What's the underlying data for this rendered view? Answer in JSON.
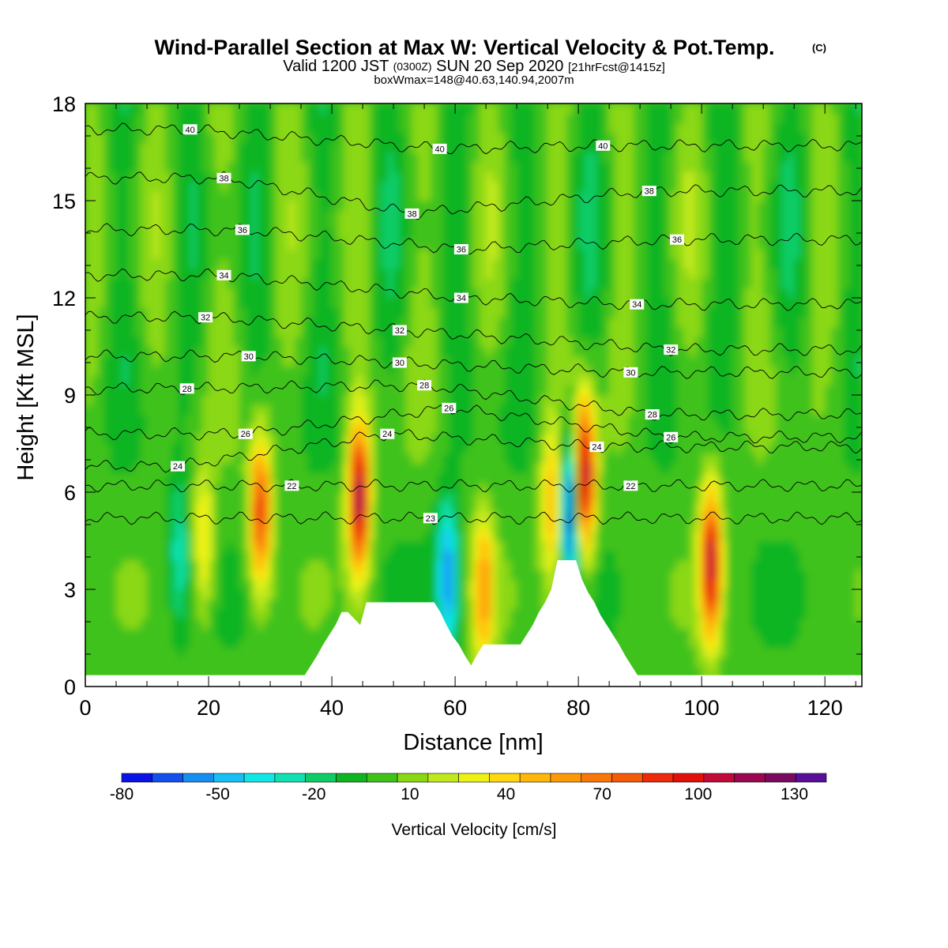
{
  "title": {
    "main": "Wind-Parallel Section at Max W: Vertical Velocity & Pot.Temp.",
    "mark": "(C)",
    "valid_prefix": "Valid 1200 JST",
    "valid_utc": "(0300Z)",
    "valid_date": "SUN 20 Sep 2020",
    "forecast": "[21hrFcst@1415z]",
    "boxinfo": "boxWmax=148@40.63,140.94,2007m"
  },
  "colors": {
    "background": "#ffffff",
    "terrain": "#ffffff",
    "contour_line": "#000000",
    "frame": "#000000"
  },
  "chart_data": {
    "type": "heatmap",
    "xlabel": "Distance [nm]",
    "ylabel": "Height [Kft MSL]",
    "xlim": [
      0,
      126
    ],
    "ylim": [
      0,
      18
    ],
    "x_ticks": [
      0,
      20,
      40,
      60,
      80,
      100,
      120
    ],
    "y_ticks": [
      0,
      3,
      6,
      9,
      12,
      15,
      18
    ],
    "colorbar": {
      "title": "Vertical Velocity [cm/s]",
      "levels": [
        -80,
        -70,
        -60,
        -50,
        -40,
        -30,
        -20,
        -10,
        0,
        10,
        20,
        30,
        40,
        50,
        60,
        70,
        80,
        90,
        100,
        110,
        120,
        130,
        140
      ],
      "tick_labels": [
        -80,
        -50,
        -20,
        10,
        40,
        70,
        100,
        130
      ],
      "colors": [
        "#0a12e6",
        "#1450ee",
        "#168ef2",
        "#16c0f5",
        "#10e8e6",
        "#11e0b0",
        "#10cc66",
        "#0fb520",
        "#3fc21a",
        "#8ad814",
        "#c0e81a",
        "#eef214",
        "#ffd80f",
        "#ffb70a",
        "#fd9a08",
        "#f97708",
        "#f45a08",
        "#ee2a0c",
        "#e0100c",
        "#c20a38",
        "#9c0850",
        "#7a0a60",
        "#58109a"
      ]
    },
    "updraft_cores": [
      {
        "x": 19.2,
        "y": 4.5,
        "w_cm_s": 40
      },
      {
        "x": 28.4,
        "y": 5.4,
        "w_cm_s": 90
      },
      {
        "x": 44.4,
        "y": 5.8,
        "w_cm_s": 120
      },
      {
        "x": 64.6,
        "y": 3.0,
        "w_cm_s": 60
      },
      {
        "x": 75.8,
        "y": 5.6,
        "w_cm_s": 60
      },
      {
        "x": 81.0,
        "y": 6.5,
        "w_cm_s": 120
      },
      {
        "x": 101.5,
        "y": 3.8,
        "w_cm_s": 110
      }
    ],
    "downdraft_cores": [
      {
        "x": 15.2,
        "y": 4.2,
        "w_cm_s": -30
      },
      {
        "x": 58.8,
        "y": 3.4,
        "w_cm_s": -60
      },
      {
        "x": 78.6,
        "y": 5.5,
        "w_cm_s": -80
      }
    ],
    "terrain_profile": {
      "x": [
        0,
        35.6,
        36.6,
        37.6,
        38.6,
        39.6,
        40.6,
        41.6,
        42.6,
        44.6,
        45.6,
        56.6,
        57.6,
        58.6,
        59.6,
        60.6,
        61.6,
        62.6,
        63.6,
        64.6,
        70.6,
        71.6,
        72.6,
        73.6,
        74.6,
        75.6,
        76.6,
        79.6,
        80.6,
        81.6,
        82.6,
        83.6,
        84.6,
        85.6,
        86.6,
        87.6,
        88.6,
        89.6,
        126
      ],
      "height_kft": [
        0.35,
        0.35,
        0.65,
        0.95,
        1.3,
        1.6,
        1.9,
        2.3,
        2.3,
        1.9,
        2.6,
        2.6,
        2.3,
        1.9,
        1.55,
        1.3,
        0.95,
        0.65,
        1.0,
        1.3,
        1.3,
        1.6,
        1.9,
        2.3,
        2.6,
        3.0,
        3.9,
        3.9,
        3.3,
        2.9,
        2.6,
        2.2,
        1.9,
        1.6,
        1.3,
        0.95,
        0.65,
        0.35,
        0.35
      ]
    },
    "theta_contours": [
      {
        "label": "22",
        "label_x": 33.5,
        "label_y": 6.2
      },
      {
        "label": "23",
        "label_x": 56.0,
        "label_y": 5.2
      },
      {
        "label": "22",
        "label_x": 88.5,
        "label_y": 6.2
      },
      {
        "label": "24",
        "label_x": 15.0,
        "label_y": 6.8
      },
      {
        "label": "24",
        "label_x": 49.0,
        "label_y": 7.8
      },
      {
        "label": "24",
        "label_x": 83.0,
        "label_y": 7.4
      },
      {
        "label": "26",
        "label_x": 26.0,
        "label_y": 7.8
      },
      {
        "label": "26",
        "label_x": 59.0,
        "label_y": 8.6
      },
      {
        "label": "26",
        "label_x": 95.0,
        "label_y": 7.7
      },
      {
        "label": "28",
        "label_x": 16.5,
        "label_y": 9.2
      },
      {
        "label": "28",
        "label_x": 55.0,
        "label_y": 9.3
      },
      {
        "label": "28",
        "label_x": 92.0,
        "label_y": 8.4
      },
      {
        "label": "30",
        "label_x": 26.5,
        "label_y": 10.2
      },
      {
        "label": "30",
        "label_x": 51.0,
        "label_y": 10.0
      },
      {
        "label": "30",
        "label_x": 88.5,
        "label_y": 9.7
      },
      {
        "label": "32",
        "label_x": 19.5,
        "label_y": 11.4
      },
      {
        "label": "32",
        "label_x": 51.0,
        "label_y": 11.0
      },
      {
        "label": "32",
        "label_x": 95.0,
        "label_y": 10.4
      },
      {
        "label": "34",
        "label_x": 22.5,
        "label_y": 12.7
      },
      {
        "label": "34",
        "label_x": 61.0,
        "label_y": 12.0
      },
      {
        "label": "34",
        "label_x": 89.5,
        "label_y": 11.8
      },
      {
        "label": "36",
        "label_x": 25.5,
        "label_y": 14.1
      },
      {
        "label": "36",
        "label_x": 61.0,
        "label_y": 13.5
      },
      {
        "label": "36",
        "label_x": 96.0,
        "label_y": 13.8
      },
      {
        "label": "38",
        "label_x": 22.5,
        "label_y": 15.7
      },
      {
        "label": "38",
        "label_x": 53.0,
        "label_y": 14.6
      },
      {
        "label": "38",
        "label_x": 91.5,
        "label_y": 15.3
      },
      {
        "label": "40",
        "label_x": 17.0,
        "label_y": 17.2
      },
      {
        "label": "40",
        "label_x": 57.5,
        "label_y": 16.6
      },
      {
        "label": "40",
        "label_x": 84.0,
        "label_y": 16.7
      }
    ]
  }
}
